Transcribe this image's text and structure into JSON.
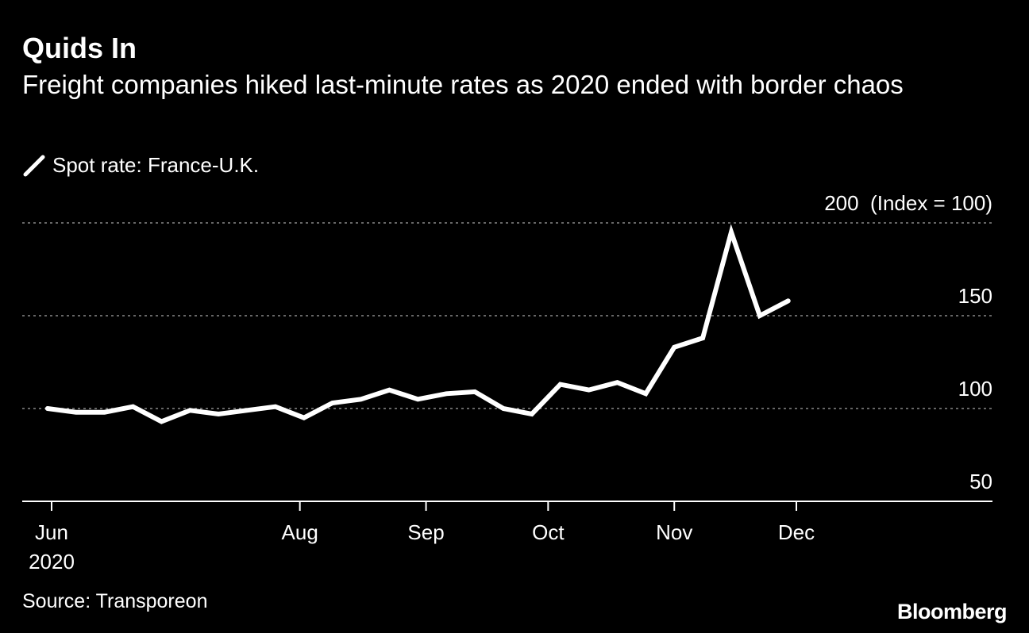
{
  "header": {
    "title": "Quids In",
    "subtitle": "Freight companies hiked last-minute rates as 2020 ended with border chaos"
  },
  "legend": {
    "label": "Spot rate: France-U.K.",
    "icon": "line-swatch-icon"
  },
  "footer": {
    "source": "Source: Transporeon",
    "logo": "Bloomberg"
  },
  "colors": {
    "background": "#000000",
    "line": "#ffffff",
    "grid": "#888888",
    "text": "#ffffff"
  },
  "chart_data": {
    "type": "line",
    "title": "Quids In",
    "subtitle": "Freight companies hiked last-minute rates as 2020 ended with border chaos",
    "y_unit_label": "(Index = 100)",
    "ylim": [
      50,
      200
    ],
    "y_ticks": [
      50,
      100,
      150,
      200
    ],
    "y_tick_labels": [
      "50",
      "100",
      "150",
      "200"
    ],
    "y_axis_position": "right",
    "grid": true,
    "legend_position": "top-left",
    "x_ticks": [
      {
        "label": "Jun",
        "sublabel": "2020",
        "date": "2020-06-01"
      },
      {
        "label": "Aug",
        "sublabel": "",
        "date": "2020-08-01"
      },
      {
        "label": "Sep",
        "sublabel": "",
        "date": "2020-09-01"
      },
      {
        "label": "Oct",
        "sublabel": "",
        "date": "2020-10-01"
      },
      {
        "label": "Nov",
        "sublabel": "",
        "date": "2020-11-01"
      },
      {
        "label": "Dec",
        "sublabel": "",
        "date": "2020-12-01"
      }
    ],
    "series": [
      {
        "name": "Spot rate: France-U.K.",
        "points": [
          {
            "x": "2020-05-31",
            "y": 100
          },
          {
            "x": "2020-06-07",
            "y": 98
          },
          {
            "x": "2020-06-14",
            "y": 98
          },
          {
            "x": "2020-06-21",
            "y": 101
          },
          {
            "x": "2020-06-28",
            "y": 93
          },
          {
            "x": "2020-07-05",
            "y": 99
          },
          {
            "x": "2020-07-12",
            "y": 97
          },
          {
            "x": "2020-07-19",
            "y": 99
          },
          {
            "x": "2020-07-26",
            "y": 101
          },
          {
            "x": "2020-08-02",
            "y": 95
          },
          {
            "x": "2020-08-09",
            "y": 103
          },
          {
            "x": "2020-08-16",
            "y": 105
          },
          {
            "x": "2020-08-23",
            "y": 110
          },
          {
            "x": "2020-08-30",
            "y": 105
          },
          {
            "x": "2020-09-06",
            "y": 108
          },
          {
            "x": "2020-09-13",
            "y": 109
          },
          {
            "x": "2020-09-20",
            "y": 100
          },
          {
            "x": "2020-09-27",
            "y": 97
          },
          {
            "x": "2020-10-04",
            "y": 113
          },
          {
            "x": "2020-10-11",
            "y": 110
          },
          {
            "x": "2020-10-18",
            "y": 114
          },
          {
            "x": "2020-10-25",
            "y": 108
          },
          {
            "x": "2020-11-01",
            "y": 133
          },
          {
            "x": "2020-11-08",
            "y": 138
          },
          {
            "x": "2020-11-15",
            "y": 195
          },
          {
            "x": "2020-11-22",
            "y": 150
          },
          {
            "x": "2020-11-29",
            "y": 158
          }
        ]
      }
    ]
  }
}
